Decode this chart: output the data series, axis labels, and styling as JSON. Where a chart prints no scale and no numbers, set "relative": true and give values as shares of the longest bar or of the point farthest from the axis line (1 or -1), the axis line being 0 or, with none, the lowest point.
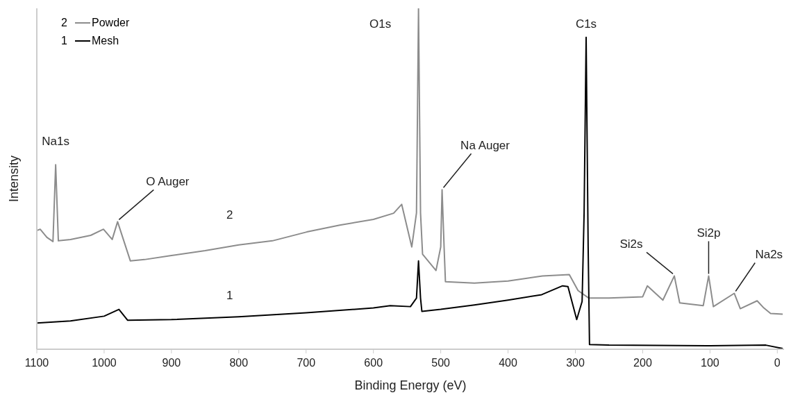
{
  "chart_data": {
    "type": "line",
    "xlabel": "Binding Energy (eV)",
    "ylabel": "Intensity",
    "relative": true,
    "xlim": [
      1100,
      -10
    ],
    "xticks": [
      1100,
      1000,
      900,
      800,
      700,
      600,
      500,
      400,
      300,
      200,
      100,
      0
    ],
    "grid": false,
    "legend": "top left",
    "marker": "none",
    "line_style": "solid",
    "series": [
      {
        "name": "Powder",
        "color": "#8c8c8c",
        "x": [
          1100,
          1095,
          1085,
          1076,
          1072,
          1068,
          1050,
          1020,
          1001,
          988,
          980,
          961,
          940,
          900,
          850,
          800,
          750,
          699,
          650,
          600,
          570,
          558,
          543,
          536,
          533,
          530,
          527,
          507,
          500,
          498,
          495,
          493,
          450,
          400,
          349,
          309,
          296,
          280,
          250,
          200,
          193,
          170,
          153,
          145,
          110,
          102,
          95,
          64,
          55,
          30,
          20,
          10,
          -8
        ],
        "values": [
          0.348,
          0.352,
          0.328,
          0.316,
          0.541,
          0.318,
          0.322,
          0.334,
          0.352,
          0.322,
          0.374,
          0.259,
          0.263,
          0.275,
          0.289,
          0.306,
          0.318,
          0.344,
          0.364,
          0.381,
          0.399,
          0.425,
          0.3,
          0.4,
          1,
          0.4,
          0.279,
          0.231,
          0.3,
          0.468,
          0.3,
          0.198,
          0.194,
          0.2,
          0.215,
          0.219,
          0.172,
          0.15,
          0.15,
          0.154,
          0.186,
          0.144,
          0.215,
          0.136,
          0.128,
          0.215,
          0.125,
          0.164,
          0.119,
          0.142,
          0.121,
          0.105,
          0.103
        ]
      },
      {
        "name": "Mesh",
        "color": "#000000",
        "x": [
          1100,
          1050,
          1000,
          978,
          965,
          900,
          800,
          700,
          600,
          575,
          545,
          536,
          533,
          530,
          528,
          500,
          450,
          400,
          350,
          319,
          311,
          298,
          290,
          287,
          284,
          281,
          279,
          250,
          100,
          17,
          -8
        ],
        "values": [
          0.077,
          0.083,
          0.097,
          0.117,
          0.085,
          0.087,
          0.095,
          0.107,
          0.121,
          0.128,
          0.125,
          0.15,
          0.259,
          0.15,
          0.111,
          0.117,
          0.13,
          0.144,
          0.16,
          0.186,
          0.184,
          0.087,
          0.14,
          0.4,
          0.915,
          0.3,
          0.014,
          0.012,
          0.01,
          0.012,
          0.002
        ]
      }
    ],
    "annotations": [
      "2",
      "1",
      {
        "text": "Na1s",
        "x": 1072,
        "y": 0.541
      },
      {
        "text": "O Auger",
        "x": 980,
        "y": 0.374
      },
      {
        "text": "O1s",
        "x": 533,
        "y": 1
      },
      {
        "text": "Na Auger",
        "x": 498,
        "y": 0.468
      },
      {
        "text": "C1s",
        "x": 284,
        "y": 0.915
      },
      {
        "text": "Si2s",
        "x": 153,
        "y": 0.215
      },
      {
        "text": "Si2p",
        "x": 102,
        "y": 0.215
      },
      {
        "text": "Na2s",
        "x": 64,
        "y": 0.164
      }
    ]
  }
}
